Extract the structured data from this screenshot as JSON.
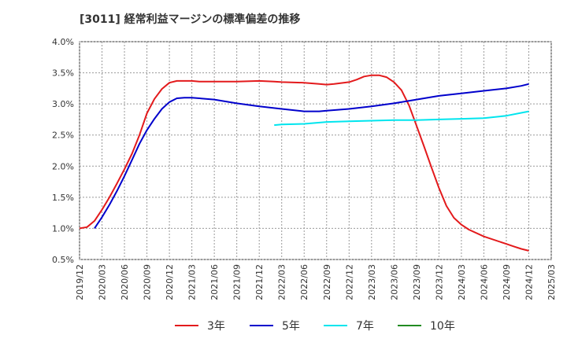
{
  "chart_data": {
    "type": "line",
    "title": "[3011]  経常利益マージンの標準偏差の推移",
    "xlabel": "",
    "ylabel": "",
    "ylim": [
      0.5,
      4.0
    ],
    "xlim": [
      "2019/12",
      "2025/03"
    ],
    "grid": true,
    "legend_position": "bottom",
    "y_ticks": [
      "0.5%",
      "1.0%",
      "1.5%",
      "2.0%",
      "2.5%",
      "3.0%",
      "3.5%",
      "4.0%"
    ],
    "x_ticks": [
      "2019/12",
      "2020/03",
      "2020/06",
      "2020/09",
      "2020/12",
      "2021/03",
      "2021/06",
      "2021/09",
      "2021/12",
      "2022/03",
      "2022/06",
      "2022/09",
      "2022/12",
      "2023/03",
      "2023/06",
      "2023/09",
      "2023/12",
      "2024/03",
      "2024/06",
      "2024/09",
      "2024/12",
      "2025/03"
    ],
    "series": [
      {
        "name": "3年",
        "color": "#e31a1c",
        "points": [
          [
            "2019/12",
            1.0
          ],
          [
            "2020/01",
            1.02
          ],
          [
            "2020/02",
            1.12
          ],
          [
            "2020/03",
            1.3
          ],
          [
            "2020/04",
            1.5
          ],
          [
            "2020/05",
            1.72
          ],
          [
            "2020/06",
            1.95
          ],
          [
            "2020/07",
            2.2
          ],
          [
            "2020/08",
            2.5
          ],
          [
            "2020/09",
            2.85
          ],
          [
            "2020/10",
            3.08
          ],
          [
            "2020/11",
            3.24
          ],
          [
            "2020/12",
            3.34
          ],
          [
            "2021/01",
            3.37
          ],
          [
            "2021/02",
            3.37
          ],
          [
            "2021/03",
            3.37
          ],
          [
            "2021/04",
            3.36
          ],
          [
            "2021/06",
            3.36
          ],
          [
            "2021/09",
            3.36
          ],
          [
            "2021/12",
            3.37
          ],
          [
            "2022/02",
            3.36
          ],
          [
            "2022/03",
            3.35
          ],
          [
            "2022/06",
            3.34
          ],
          [
            "2022/08",
            3.32
          ],
          [
            "2022/09",
            3.31
          ],
          [
            "2022/10",
            3.32
          ],
          [
            "2022/12",
            3.35
          ],
          [
            "2023/01",
            3.39
          ],
          [
            "2023/02",
            3.44
          ],
          [
            "2023/03",
            3.46
          ],
          [
            "2023/04",
            3.46
          ],
          [
            "2023/05",
            3.43
          ],
          [
            "2023/06",
            3.35
          ],
          [
            "2023/07",
            3.22
          ],
          [
            "2023/08",
            2.98
          ],
          [
            "2023/09",
            2.65
          ],
          [
            "2023/10",
            2.32
          ],
          [
            "2023/11",
            1.98
          ],
          [
            "2023/12",
            1.65
          ],
          [
            "2024/01",
            1.36
          ],
          [
            "2024/02",
            1.17
          ],
          [
            "2024/03",
            1.06
          ],
          [
            "2024/04",
            0.98
          ],
          [
            "2024/06",
            0.87
          ],
          [
            "2024/09",
            0.75
          ],
          [
            "2024/10",
            0.71
          ],
          [
            "2024/11",
            0.67
          ],
          [
            "2024/12",
            0.64
          ]
        ]
      },
      {
        "name": "5年",
        "color": "#0000cc",
        "points": [
          [
            "2020/02",
            1.0
          ],
          [
            "2020/03",
            1.18
          ],
          [
            "2020/04",
            1.38
          ],
          [
            "2020/05",
            1.6
          ],
          [
            "2020/06",
            1.84
          ],
          [
            "2020/07",
            2.1
          ],
          [
            "2020/08",
            2.36
          ],
          [
            "2020/09",
            2.58
          ],
          [
            "2020/10",
            2.76
          ],
          [
            "2020/11",
            2.92
          ],
          [
            "2020/12",
            3.03
          ],
          [
            "2021/01",
            3.09
          ],
          [
            "2021/02",
            3.1
          ],
          [
            "2021/03",
            3.1
          ],
          [
            "2021/06",
            3.07
          ],
          [
            "2021/09",
            3.01
          ],
          [
            "2021/12",
            2.96
          ],
          [
            "2022/03",
            2.92
          ],
          [
            "2022/06",
            2.88
          ],
          [
            "2022/08",
            2.88
          ],
          [
            "2022/09",
            2.89
          ],
          [
            "2022/12",
            2.92
          ],
          [
            "2023/03",
            2.96
          ],
          [
            "2023/06",
            3.01
          ],
          [
            "2023/09",
            3.07
          ],
          [
            "2023/12",
            3.13
          ],
          [
            "2024/03",
            3.17
          ],
          [
            "2024/06",
            3.21
          ],
          [
            "2024/09",
            3.25
          ],
          [
            "2024/11",
            3.29
          ],
          [
            "2024/12",
            3.32
          ]
        ]
      },
      {
        "name": "7年",
        "color": "#00e5ee",
        "points": [
          [
            "2022/02",
            2.66
          ],
          [
            "2022/03",
            2.67
          ],
          [
            "2022/06",
            2.68
          ],
          [
            "2022/09",
            2.71
          ],
          [
            "2022/12",
            2.72
          ],
          [
            "2023/03",
            2.73
          ],
          [
            "2023/06",
            2.74
          ],
          [
            "2023/09",
            2.74
          ],
          [
            "2023/12",
            2.75
          ],
          [
            "2024/03",
            2.76
          ],
          [
            "2024/06",
            2.77
          ],
          [
            "2024/09",
            2.81
          ],
          [
            "2024/12",
            2.88
          ]
        ]
      },
      {
        "name": "10年",
        "color": "#228b22",
        "points": []
      }
    ]
  }
}
